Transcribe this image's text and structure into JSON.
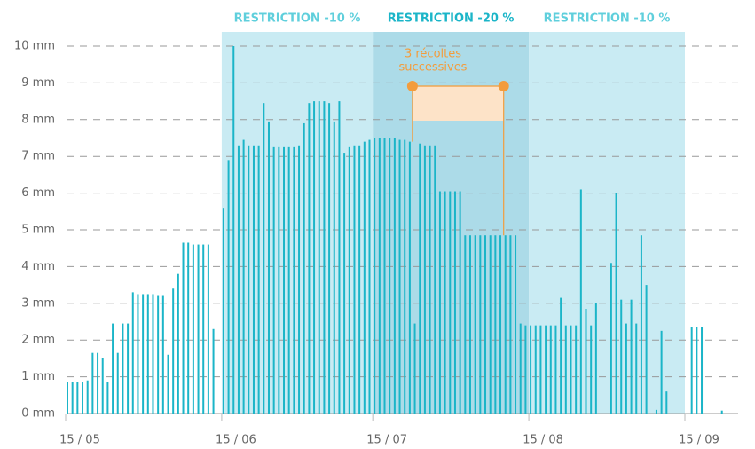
{
  "chart_data": {
    "type": "bar",
    "color": "#1bb5c8",
    "categories": [
      "15 / 05",
      null,
      null,
      null,
      null,
      null,
      null,
      null,
      null,
      null,
      null,
      null,
      null,
      null,
      null,
      null,
      null,
      null,
      null,
      null,
      null,
      null,
      null,
      null,
      null,
      null,
      null,
      null,
      null,
      null,
      null,
      "15 / 06",
      null,
      null,
      null,
      null,
      null,
      null,
      null,
      null,
      null,
      null,
      null,
      null,
      null,
      null,
      null,
      null,
      null,
      null,
      null,
      null,
      null,
      null,
      null,
      null,
      null,
      null,
      null,
      null,
      null,
      "15 / 07",
      null,
      null,
      null,
      null,
      null,
      null,
      null,
      null,
      null,
      null,
      null,
      null,
      null,
      null,
      null,
      null,
      null,
      null,
      null,
      null,
      null,
      null,
      null,
      null,
      null,
      null,
      null,
      null,
      null,
      null,
      "15 / 08",
      null,
      null,
      null,
      null,
      null,
      null,
      null,
      null,
      null,
      null,
      null,
      null,
      null,
      null,
      null,
      null,
      null,
      null,
      null,
      null,
      null,
      null,
      null,
      null,
      null,
      null,
      null,
      null,
      null,
      null,
      "15 / 09",
      null,
      null,
      null,
      null,
      null,
      null,
      null
    ],
    "values": [
      0.85,
      0.85,
      0.85,
      0.85,
      0.9,
      1.65,
      1.65,
      1.5,
      0.85,
      2.45,
      1.65,
      2.45,
      2.45,
      3.3,
      3.25,
      3.25,
      3.25,
      3.25,
      3.2,
      3.2,
      1.6,
      3.4,
      3.8,
      4.65,
      4.65,
      4.6,
      4.6,
      4.6,
      4.6,
      2.3,
      0,
      5.6,
      6.9,
      10,
      7.3,
      7.45,
      7.3,
      7.3,
      7.3,
      8.45,
      7.95,
      7.25,
      7.25,
      7.25,
      7.25,
      7.25,
      7.3,
      7.9,
      8.45,
      8.5,
      8.5,
      8.5,
      8.45,
      7.95,
      8.5,
      7.1,
      7.25,
      7.3,
      7.3,
      7.4,
      7.45,
      7.5,
      7.5,
      7.5,
      7.5,
      7.5,
      7.45,
      7.45,
      7.4,
      2.45,
      7.35,
      7.3,
      7.3,
      7.3,
      6.05,
      6.05,
      6.05,
      6.05,
      6.05,
      4.85,
      4.85,
      4.85,
      4.85,
      4.85,
      4.85,
      4.85,
      4.85,
      4.85,
      4.85,
      4.85,
      2.45,
      2.4,
      2.4,
      2.4,
      2.4,
      2.4,
      2.4,
      2.4,
      3.15,
      2.4,
      2.4,
      2.4,
      6.1,
      2.85,
      2.4,
      3.0,
      0,
      0,
      4.1,
      6.0,
      3.1,
      2.45,
      3.1,
      2.45,
      4.85,
      3.5,
      0,
      0.1,
      2.25,
      0.6,
      0,
      0,
      0,
      0,
      2.35,
      2.35,
      2.35,
      0,
      0,
      0,
      0.08
    ],
    "ylim": [
      0,
      10
    ],
    "yticks": [
      {
        "value": 0,
        "label": "0 mm"
      },
      {
        "value": 1,
        "label": "1 mm"
      },
      {
        "value": 2,
        "label": "2 mm"
      },
      {
        "value": 3,
        "label": "3 mm"
      },
      {
        "value": 4,
        "label": "4 mm"
      },
      {
        "value": 5,
        "label": "5 mm"
      },
      {
        "value": 6,
        "label": "6 mm"
      },
      {
        "value": 7,
        "label": "7 mm"
      },
      {
        "value": 8,
        "label": "8 mm"
      },
      {
        "value": 9,
        "label": "9 mm"
      },
      {
        "value": 10,
        "label": "10 mm"
      }
    ],
    "grid": true,
    "bands": [
      {
        "label": "RESTRICTION -10 %",
        "start": 31,
        "end": 61,
        "color": "#c9ebf3",
        "label_color": "#5fcfdc"
      },
      {
        "label": "RESTRICTION -20 %",
        "start": 61,
        "end": 92,
        "color": "#acdbe8",
        "label_color": "#1bb5c8"
      },
      {
        "label": "RESTRICTION -10 %",
        "start": 92,
        "end": 123,
        "color": "#c9ebf3",
        "label_color": "#5fcfdc"
      }
    ],
    "annotation": {
      "lines": [
        "3 récoltes",
        "successives"
      ],
      "start": 68,
      "end": 87,
      "color": "#f39c3c"
    }
  }
}
